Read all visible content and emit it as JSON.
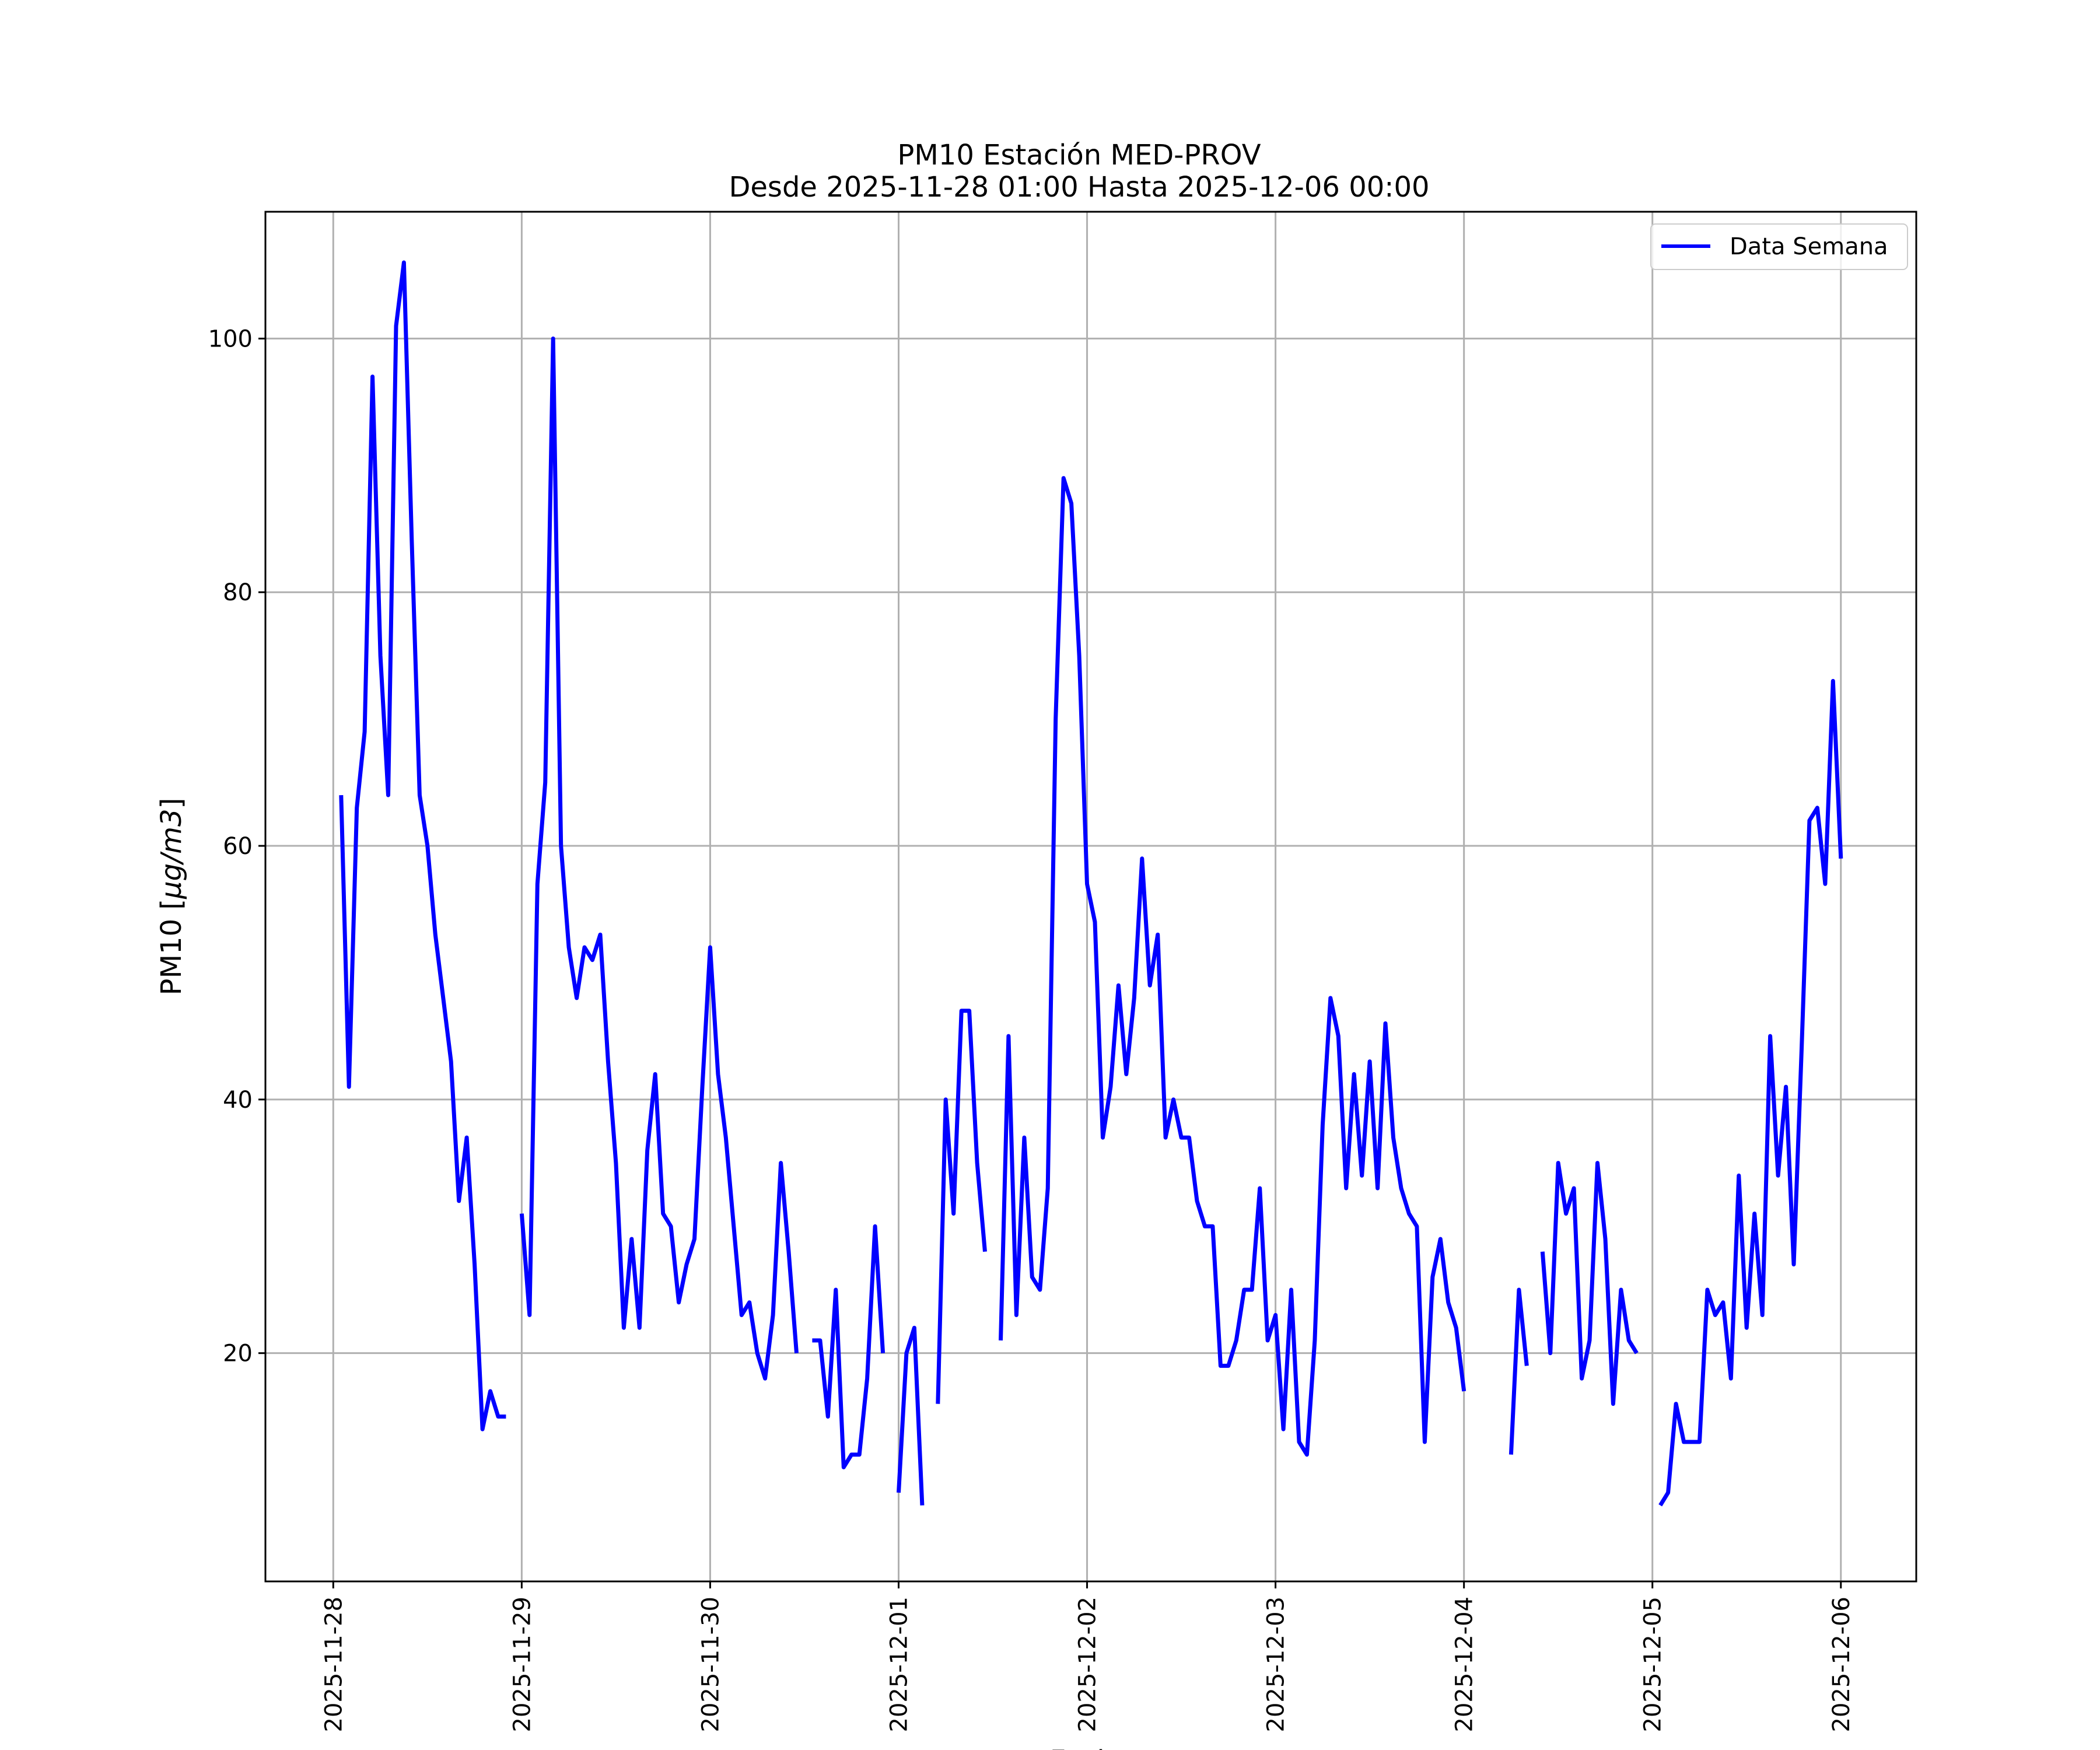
{
  "chart_data": {
    "type": "line",
    "title": "PM10 Estación MED-PROV",
    "subtitle": "Desde 2025-11-28 01:00 Hasta 2025-12-06 00:00",
    "xlabel": "Fecha",
    "ylabel": "PM10 [μg/m3]",
    "ylabel_parts": [
      "PM10 [",
      "μg/m3",
      "]"
    ],
    "x_ticks": [
      "2025-11-28",
      "2025-11-29",
      "2025-11-30",
      "2025-12-01",
      "2025-12-02",
      "2025-12-03",
      "2025-12-04",
      "2025-12-05",
      "2025-12-06"
    ],
    "y_ticks": [
      20,
      40,
      60,
      80,
      100
    ],
    "xlim": [
      -0.36,
      8.4
    ],
    "ylim": [
      2,
      110
    ],
    "grid": true,
    "legend_position": "top-right",
    "colors": {
      "line": "#0000ff",
      "grid": "#b0b0b0"
    },
    "x_units": "days since 2025-11-28 00:00 (hourly points, gaps = missing data)",
    "series": [
      {
        "name": "Data Semana",
        "color": "#0000ff",
        "segments": [
          {
            "start_hour": 1,
            "values": [
              64,
              41,
              63,
              69,
              97,
              75,
              64,
              101,
              106,
              84,
              64,
              60,
              53,
              48,
              43,
              32,
              37,
              27,
              14,
              17,
              15,
              15
            ]
          },
          {
            "start_hour": 24,
            "values": [
              31,
              23,
              57,
              65,
              100,
              60,
              52,
              48,
              52,
              51,
              53,
              43,
              35,
              22,
              29,
              22,
              36,
              42,
              31,
              30,
              24,
              27,
              29,
              41,
              52,
              42,
              37,
              30,
              23,
              24,
              20,
              18,
              23,
              35,
              28,
              20
            ]
          },
          {
            "start_hour": 61,
            "values": [
              21,
              21,
              15,
              25,
              11,
              12,
              12,
              18,
              30,
              20
            ]
          },
          {
            "start_hour": 72,
            "values": [
              9,
              20,
              22,
              8
            ]
          },
          {
            "start_hour": 77,
            "values": [
              16,
              40,
              31,
              47,
              47,
              35,
              28
            ]
          },
          {
            "start_hour": 85,
            "values": [
              21,
              45,
              23,
              37,
              26,
              25,
              33,
              70,
              89,
              87,
              75,
              57,
              54,
              37,
              41,
              49,
              42,
              48,
              59,
              49,
              53,
              37,
              40,
              37,
              37,
              32,
              30,
              30,
              19,
              19,
              21,
              25,
              25,
              33,
              21,
              23,
              14,
              25,
              13,
              12,
              21,
              38,
              48,
              45,
              33,
              42,
              34,
              43,
              33,
              46,
              37,
              33,
              31,
              30,
              13,
              26,
              29,
              24,
              22,
              17
            ]
          },
          {
            "start_hour": 150,
            "values": [
              12,
              25,
              19
            ]
          },
          {
            "start_hour": 154,
            "values": [
              28,
              20,
              35,
              31,
              33,
              18,
              21,
              35,
              29,
              16,
              25,
              21,
              20
            ]
          },
          {
            "start_hour": 169,
            "values": [
              8,
              9,
              16,
              13,
              13,
              13,
              25,
              23,
              24,
              18,
              34,
              22,
              31,
              23,
              45,
              34,
              41,
              27,
              44,
              62,
              63,
              57,
              73,
              59
            ]
          }
        ]
      }
    ]
  }
}
